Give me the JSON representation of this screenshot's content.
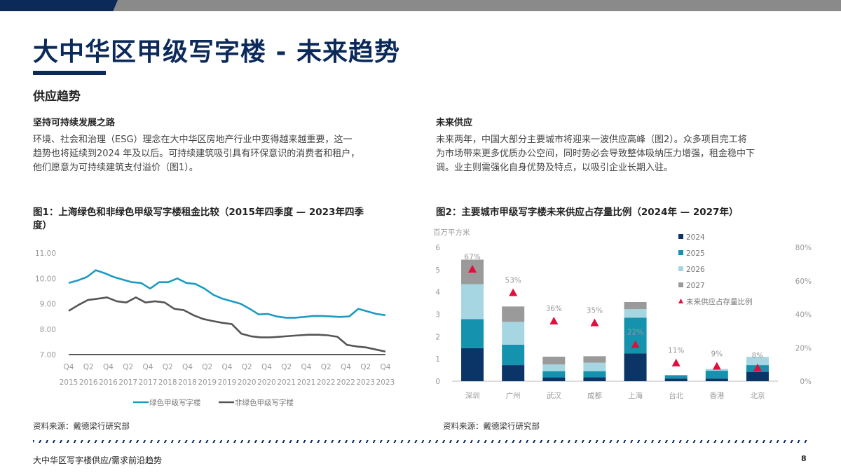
{
  "header": {
    "title": "大中华区甲级写字楼 - 未来趋势",
    "section": "供应趋势"
  },
  "left": {
    "heading": "坚持可持续发展之路",
    "lines": [
      "环境、社会和治理（ESG）理念在大中华区房地产行业中变得越来越重要，这一",
      "趋势也将延续到2024 年及以后。可持续建筑吸引具有环保意识的消费者和租户，",
      "他们愿意为可持续建筑支付溢价（图1）。"
    ],
    "figure_title_lines": [
      "图1：上海绿色和非绿色甲级写字楼租金比较（2015年四季度 — 2023年四季",
      "度）"
    ],
    "source": "资料来源：戴德梁行研究部"
  },
  "right": {
    "heading": "未来供应",
    "lines": [
      "未来两年，中国大部分主要城市将迎来一波供应高峰（图2）。众多项目完工将",
      "为市场带来更多优质办公空间，同时势必会导致整体吸纳压力增强，租金稳中下",
      "调。业主则需强化自身优势及特点，以吸引企业长期入驻。"
    ],
    "figure_title": "图2：主要城市甲级写字楼未来供应占存量比例（2024年 — 2027年）",
    "source": "资料来源：戴德梁行研究部"
  },
  "footer": {
    "text": "大中华区写字楼供应/需求前沿趋势",
    "page": "8"
  },
  "colors": {
    "navy": "#0b2a5a",
    "green_line": "#1b9bc3",
    "nongreen_line": "#555555",
    "bar_2024": "#0a3566",
    "bar_2025": "#1592ad",
    "bar_2026": "#a6d6e2",
    "bar_2027": "#9a9a9a",
    "ratio_marker": "#e0103d"
  },
  "chart_data": [
    {
      "type": "line",
      "x_ticks": [
        [
          "Q4",
          "2015"
        ],
        [
          "Q2",
          "2016"
        ],
        [
          "Q4",
          "2016"
        ],
        [
          "Q2",
          "2017"
        ],
        [
          "Q4",
          "2017"
        ],
        [
          "Q2",
          "2018"
        ],
        [
          "Q4",
          "2018"
        ],
        [
          "Q2",
          "2019"
        ],
        [
          "Q4",
          "2019"
        ],
        [
          "Q2",
          "2020"
        ],
        [
          "Q4",
          "2020"
        ],
        [
          "Q2",
          "2021"
        ],
        [
          "Q4",
          "2021"
        ],
        [
          "Q2",
          "2022"
        ],
        [
          "Q4",
          "2022"
        ],
        [
          "Q2",
          "2023"
        ],
        [
          "Q4",
          "2023"
        ]
      ],
      "y_ticks": [
        "7.00",
        "8.00",
        "9.00",
        "10.00",
        "11.00"
      ],
      "ylim": [
        7,
        11
      ],
      "series": [
        {
          "name": "绿色甲级写字楼",
          "color": "#1b9bc3",
          "values": [
            9.82,
            9.92,
            10.05,
            10.32,
            10.2,
            10.05,
            9.95,
            9.85,
            9.82,
            9.6,
            9.85,
            9.85,
            10.0,
            9.82,
            9.78,
            9.6,
            9.35,
            9.2,
            9.1,
            9.0,
            8.8,
            8.58,
            8.6,
            8.5,
            8.45,
            8.45,
            8.48,
            8.52,
            8.52,
            8.5,
            8.48,
            8.5,
            8.8,
            8.7,
            8.6,
            8.55
          ]
        },
        {
          "name": "非绿色甲级写字楼",
          "color": "#555555",
          "values": [
            8.72,
            8.95,
            9.15,
            9.2,
            9.25,
            9.1,
            9.05,
            9.25,
            9.05,
            9.1,
            9.05,
            8.8,
            8.75,
            8.55,
            8.4,
            8.32,
            8.25,
            8.2,
            7.82,
            7.72,
            7.68,
            7.68,
            7.7,
            7.73,
            7.76,
            7.78,
            7.78,
            7.76,
            7.7,
            7.38,
            7.32,
            7.28,
            7.2,
            7.12
          ]
        }
      ]
    },
    {
      "type": "bar",
      "stacked": true,
      "categories": [
        "深圳",
        "广州",
        "武汉",
        "成都",
        "上海",
        "台北",
        "香港",
        "北京"
      ],
      "y_unit": "百万平方米",
      "ylim": [
        0,
        6
      ],
      "y_ticks": [
        "0",
        "1",
        "2",
        "3",
        "4",
        "5",
        "6"
      ],
      "y2_ticks": [
        "0%",
        "20%",
        "40%",
        "60%",
        "80%"
      ],
      "y2lim": [
        0,
        0.8
      ],
      "series": [
        {
          "name": "2024",
          "color": "#0a3566",
          "values": [
            1.48,
            0.72,
            0.17,
            0.18,
            1.25,
            0.12,
            0.12,
            0.42
          ]
        },
        {
          "name": "2025",
          "color": "#1592ad",
          "values": [
            1.3,
            0.92,
            0.28,
            0.27,
            1.6,
            0.15,
            0.35,
            0.3
          ]
        },
        {
          "name": "2026",
          "color": "#a6d6e2",
          "values": [
            1.57,
            1.02,
            0.3,
            0.38,
            0.38,
            0.0,
            0.08,
            0.37
          ]
        },
        {
          "name": "2027",
          "color": "#9a9a9a",
          "values": [
            1.1,
            0.69,
            0.35,
            0.29,
            0.32,
            0.0,
            0.0,
            0.0
          ]
        }
      ],
      "ratio_series": {
        "name": "未来供应占存量比例",
        "color": "#e0103d",
        "values": [
          0.67,
          0.53,
          0.36,
          0.35,
          0.22,
          0.11,
          0.09,
          0.08
        ],
        "labels": [
          "67%",
          "53%",
          "36%",
          "35%",
          "22%",
          "11%",
          "9%",
          "8%"
        ]
      }
    }
  ]
}
